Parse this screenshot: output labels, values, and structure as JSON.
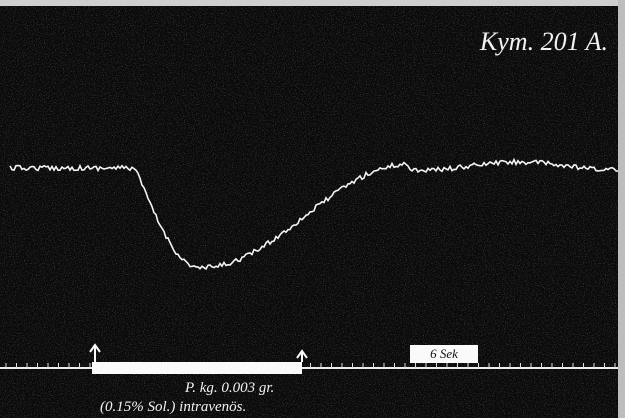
{
  "header": {
    "title": "Kym. 201 A."
  },
  "time_marker": {
    "label": "6 Sek"
  },
  "annotation": {
    "line1": "P. kg. 0.003 gr.",
    "line2": "(0.15% Sol.) intravenös."
  }
}
